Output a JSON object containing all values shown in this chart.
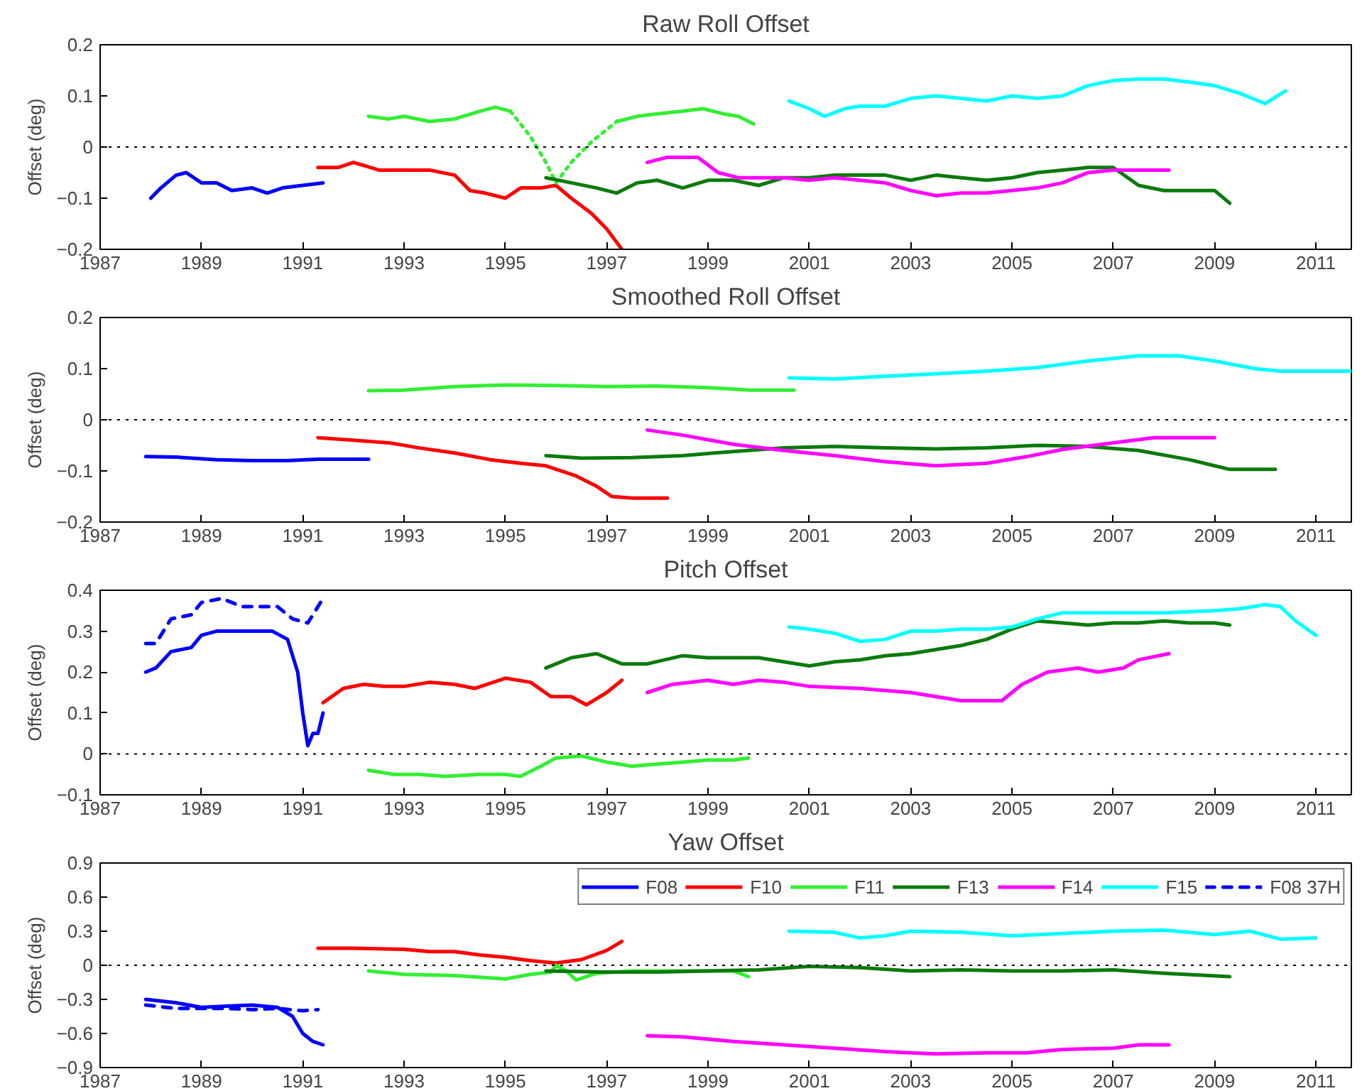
{
  "chart_data": [
    {
      "type": "line",
      "title": "Raw Roll Offset",
      "ylabel": "Offset (deg)",
      "xlim": [
        1987,
        2011.7
      ],
      "xticks": [
        1987,
        1989,
        1991,
        1993,
        1995,
        1997,
        1999,
        2001,
        2003,
        2005,
        2007,
        2009,
        2011
      ],
      "ylim": [
        -0.2,
        0.2
      ],
      "yticks": [
        -0.2,
        -0.1,
        0,
        0.1,
        0.2
      ],
      "grid": false,
      "legend": false,
      "line_style": "solid",
      "ref_lines": [
        {
          "axis": "y",
          "value": 0,
          "color": "#000000",
          "line_style": "dotted"
        }
      ],
      "series": [
        {
          "color": "#0000ff",
          "x": [
            1988.0,
            1988.2,
            1988.5,
            1988.7,
            1989.0,
            1989.3,
            1989.6,
            1990.0,
            1990.3,
            1990.6,
            1991.0,
            1991.4
          ],
          "values": [
            -0.1,
            -0.08,
            -0.055,
            -0.05,
            -0.07,
            -0.07,
            -0.085,
            -0.08,
            -0.09,
            -0.08,
            -0.075,
            -0.07
          ]
        },
        {
          "color": "#ff0000",
          "x": [
            1991.3,
            1991.7,
            1992.0,
            1992.5,
            1993.0,
            1993.5,
            1994.0,
            1994.3,
            1994.6,
            1995.0,
            1995.3,
            1995.7,
            1996.0,
            1996.3,
            1996.7,
            1997.0,
            1997.3
          ],
          "values": [
            -0.04,
            -0.04,
            -0.03,
            -0.045,
            -0.045,
            -0.045,
            -0.055,
            -0.085,
            -0.09,
            -0.1,
            -0.08,
            -0.08,
            -0.075,
            -0.1,
            -0.13,
            -0.16,
            -0.2
          ]
        },
        {
          "color": "#33ee33",
          "x": [
            1992.3,
            1992.7,
            1993.0,
            1993.5,
            1994.0,
            1994.5,
            1994.8,
            1995.1,
            1996.0,
            1997.2,
            1997.6,
            1998.0,
            1998.5,
            1998.9,
            1999.3,
            1999.6,
            1999.9
          ],
          "values": [
            0.06,
            0.055,
            0.06,
            0.05,
            0.055,
            0.07,
            0.078,
            0.07,
            null,
            0.05,
            0.06,
            0.065,
            0.07,
            0.075,
            0.065,
            0.06,
            0.045
          ]
        },
        {
          "color": "#33ee33",
          "line_style": "dotted",
          "x": [
            1995.1,
            1995.5,
            1995.8,
            1996.0,
            1996.3,
            1996.7,
            1997.2
          ],
          "values": [
            0.07,
            0.02,
            -0.03,
            -0.07,
            -0.03,
            0.01,
            0.05
          ]
        },
        {
          "color": "#0a7a0a",
          "x": [
            1995.8,
            1996.3,
            1996.8,
            1997.2,
            1997.6,
            1998.0,
            1998.5,
            1999.0,
            1999.5,
            2000.0,
            2000.5,
            2001.0,
            2001.5,
            2002.0,
            2002.5,
            2003.0,
            2003.5,
            2004.0,
            2004.5,
            2005.0,
            2005.5,
            2006.0,
            2006.5,
            2007.0,
            2007.5,
            2008.0,
            2008.5,
            2009.0,
            2009.3
          ],
          "values": [
            -0.06,
            -0.07,
            -0.08,
            -0.09,
            -0.07,
            -0.065,
            -0.08,
            -0.065,
            -0.065,
            -0.075,
            -0.06,
            -0.06,
            -0.055,
            -0.055,
            -0.055,
            -0.065,
            -0.055,
            -0.06,
            -0.065,
            -0.06,
            -0.05,
            -0.045,
            -0.04,
            -0.04,
            -0.075,
            -0.085,
            -0.085,
            -0.085,
            -0.11
          ]
        },
        {
          "color": "#ff00ff",
          "x": [
            1997.8,
            1998.2,
            1998.8,
            1999.2,
            1999.6,
            2000.0,
            2000.5,
            2001.0,
            2001.5,
            2002.0,
            2002.5,
            2003.0,
            2003.5,
            2004.0,
            2004.5,
            2005.0,
            2005.5,
            2006.0,
            2006.5,
            2007.0,
            2007.5,
            2008.1
          ],
          "values": [
            -0.03,
            -0.02,
            -0.02,
            -0.05,
            -0.06,
            -0.06,
            -0.06,
            -0.065,
            -0.06,
            -0.065,
            -0.07,
            -0.085,
            -0.095,
            -0.09,
            -0.09,
            -0.085,
            -0.08,
            -0.07,
            -0.05,
            -0.045,
            -0.045,
            -0.045
          ]
        },
        {
          "color": "#00ffff",
          "x": [
            2000.6,
            2001.0,
            2001.3,
            2001.7,
            2002.0,
            2002.5,
            2003.0,
            2003.5,
            2004.0,
            2004.5,
            2005.0,
            2005.5,
            2006.0,
            2006.5,
            2007.0,
            2007.5,
            2008.0,
            2008.5,
            2009.0,
            2009.5,
            2010.0,
            2010.4
          ],
          "values": [
            0.09,
            0.075,
            0.06,
            0.075,
            0.08,
            0.08,
            0.095,
            0.1,
            0.095,
            0.09,
            0.1,
            0.095,
            0.1,
            0.12,
            0.13,
            0.133,
            0.133,
            0.127,
            0.12,
            0.105,
            0.085,
            0.11
          ]
        }
      ]
    },
    {
      "type": "line",
      "title": "Smoothed Roll Offset",
      "ylabel": "Offset (deg)",
      "xlim": [
        1987,
        2011.7
      ],
      "xticks": [
        1987,
        1989,
        1991,
        1993,
        1995,
        1997,
        1999,
        2001,
        2003,
        2005,
        2007,
        2009,
        2011
      ],
      "ylim": [
        -0.2,
        0.2
      ],
      "yticks": [
        -0.2,
        -0.1,
        0,
        0.1,
        0.2
      ],
      "grid": false,
      "legend": false,
      "line_style": "solid",
      "ref_lines": [
        {
          "axis": "y",
          "value": 0,
          "color": "#000000",
          "line_style": "dotted"
        }
      ],
      "series": [
        {
          "color": "#0000ff",
          "x": [
            1987.9,
            1988.5,
            1989.3,
            1990.0,
            1990.7,
            1991.3,
            1992.3
          ],
          "values": [
            -0.072,
            -0.073,
            -0.078,
            -0.08,
            -0.08,
            -0.077,
            -0.077
          ]
        },
        {
          "color": "#ff0000",
          "x": [
            1991.3,
            1992.0,
            1992.7,
            1993.3,
            1994.0,
            1994.7,
            1995.3,
            1995.8,
            1996.4,
            1996.8,
            1997.1,
            1997.5,
            1998.2
          ],
          "values": [
            -0.035,
            -0.04,
            -0.045,
            -0.055,
            -0.065,
            -0.078,
            -0.085,
            -0.09,
            -0.11,
            -0.13,
            -0.15,
            -0.153,
            -0.153
          ]
        },
        {
          "color": "#33ee33",
          "x": [
            1992.3,
            1993.0,
            1994.0,
            1995.0,
            1996.0,
            1997.0,
            1998.0,
            1999.0,
            1999.8,
            2000.7
          ],
          "values": [
            0.057,
            0.058,
            0.065,
            0.068,
            0.067,
            0.065,
            0.066,
            0.063,
            0.058,
            0.058
          ]
        },
        {
          "color": "#0a7a0a",
          "x": [
            1995.8,
            1996.5,
            1997.5,
            1998.5,
            1999.5,
            2000.5,
            2001.5,
            2002.5,
            2003.5,
            2004.5,
            2005.5,
            2006.5,
            2007.5,
            2008.5,
            2009.0,
            2009.3,
            2010.2
          ],
          "values": [
            -0.07,
            -0.075,
            -0.074,
            -0.07,
            -0.062,
            -0.055,
            -0.052,
            -0.055,
            -0.057,
            -0.055,
            -0.05,
            -0.052,
            -0.06,
            -0.078,
            -0.09,
            -0.097,
            -0.097
          ]
        },
        {
          "color": "#ff00ff",
          "x": [
            1997.8,
            1998.5,
            1999.5,
            2000.5,
            2001.5,
            2002.5,
            2003.5,
            2004.5,
            2005.3,
            2006.0,
            2007.0,
            2007.8,
            2009.0
          ],
          "values": [
            -0.02,
            -0.03,
            -0.048,
            -0.06,
            -0.07,
            -0.082,
            -0.09,
            -0.085,
            -0.072,
            -0.058,
            -0.045,
            -0.035,
            -0.035
          ]
        },
        {
          "color": "#00ffff",
          "x": [
            2000.6,
            2001.5,
            2002.5,
            2003.5,
            2004.5,
            2005.5,
            2006.5,
            2007.5,
            2008.3,
            2009.0,
            2009.8,
            2010.3,
            2011.7
          ],
          "values": [
            0.082,
            0.08,
            0.085,
            0.09,
            0.095,
            0.102,
            0.115,
            0.125,
            0.125,
            0.115,
            0.1,
            0.095,
            0.095
          ]
        }
      ]
    },
    {
      "type": "line",
      "title": "Pitch Offset",
      "ylabel": "Offset (deg)",
      "xlim": [
        1987,
        2011.7
      ],
      "xticks": [
        1987,
        1989,
        1991,
        1993,
        1995,
        1997,
        1999,
        2001,
        2003,
        2005,
        2007,
        2009,
        2011
      ],
      "ylim": [
        -0.1,
        0.4
      ],
      "yticks": [
        -0.1,
        0,
        0.1,
        0.2,
        0.3,
        0.4
      ],
      "grid": false,
      "legend": false,
      "line_style": "solid",
      "ref_lines": [
        {
          "axis": "y",
          "value": 0,
          "color": "#000000",
          "line_style": "dotted"
        }
      ],
      "series": [
        {
          "color": "#0000ff",
          "x": [
            1987.9,
            1988.1,
            1988.4,
            1988.8,
            1989.0,
            1989.3,
            1989.6,
            1990.0,
            1990.4,
            1990.7,
            1990.9,
            1991.0,
            1991.1,
            1991.2,
            1991.3,
            1991.4
          ],
          "values": [
            0.2,
            0.21,
            0.25,
            0.26,
            0.29,
            0.3,
            0.3,
            0.3,
            0.3,
            0.28,
            0.2,
            0.1,
            0.02,
            0.05,
            0.05,
            0.1
          ]
        },
        {
          "color": "#0000ff",
          "line_style": "dashed",
          "x": [
            1987.9,
            1988.1,
            1988.4,
            1988.8,
            1989.0,
            1989.4,
            1989.8,
            1990.2,
            1990.5,
            1990.8,
            1991.1,
            1991.4
          ],
          "values": [
            0.27,
            0.27,
            0.33,
            0.34,
            0.37,
            0.38,
            0.36,
            0.36,
            0.36,
            0.33,
            0.32,
            0.38
          ]
        },
        {
          "color": "#ff0000",
          "x": [
            1991.4,
            1991.8,
            1992.2,
            1992.6,
            1993.0,
            1993.5,
            1994.0,
            1994.4,
            1995.0,
            1995.5,
            1995.9,
            1996.3,
            1996.6,
            1997.0,
            1997.3
          ],
          "values": [
            0.125,
            0.16,
            0.17,
            0.165,
            0.165,
            0.175,
            0.17,
            0.16,
            0.185,
            0.175,
            0.14,
            0.14,
            0.12,
            0.15,
            0.18
          ]
        },
        {
          "color": "#33ee33",
          "x": [
            1992.3,
            1992.8,
            1993.3,
            1993.8,
            1994.5,
            1995.0,
            1995.3,
            1995.7,
            1996.0,
            1996.5,
            1997.0,
            1997.5,
            1998.0,
            1998.5,
            1999.0,
            1999.5,
            1999.8
          ],
          "values": [
            -0.04,
            -0.05,
            -0.05,
            -0.055,
            -0.05,
            -0.05,
            -0.055,
            -0.03,
            -0.01,
            -0.005,
            -0.02,
            -0.03,
            -0.025,
            -0.02,
            -0.015,
            -0.015,
            -0.01
          ]
        },
        {
          "color": "#0a7a0a",
          "x": [
            1995.8,
            1996.3,
            1996.8,
            1997.3,
            1997.8,
            1998.5,
            1999.0,
            1999.5,
            2000.0,
            2000.5,
            2001.0,
            2001.5,
            2002.0,
            2002.5,
            2003.0,
            2003.5,
            2004.0,
            2004.5,
            2005.0,
            2005.5,
            2006.0,
            2006.5,
            2007.0,
            2007.5,
            2008.0,
            2008.5,
            2009.0,
            2009.3
          ],
          "values": [
            0.21,
            0.235,
            0.245,
            0.22,
            0.22,
            0.24,
            0.235,
            0.235,
            0.235,
            0.225,
            0.215,
            0.225,
            0.23,
            0.24,
            0.245,
            0.255,
            0.265,
            0.28,
            0.305,
            0.325,
            0.32,
            0.315,
            0.32,
            0.32,
            0.325,
            0.32,
            0.32,
            0.315
          ]
        },
        {
          "color": "#ff00ff",
          "x": [
            1997.8,
            1998.3,
            1999.0,
            1999.5,
            2000.0,
            2000.5,
            2001.0,
            2002.0,
            2003.0,
            2003.5,
            2004.0,
            2004.8,
            2005.2,
            2005.7,
            2006.3,
            2006.7,
            2007.2,
            2007.5,
            2008.1
          ],
          "values": [
            0.15,
            0.17,
            0.18,
            0.17,
            0.18,
            0.175,
            0.165,
            0.16,
            0.15,
            0.14,
            0.13,
            0.13,
            0.17,
            0.2,
            0.21,
            0.2,
            0.21,
            0.23,
            0.245
          ]
        },
        {
          "color": "#00ffff",
          "x": [
            2000.6,
            2001.0,
            2001.5,
            2002.0,
            2002.5,
            2003.0,
            2003.5,
            2004.0,
            2004.5,
            2005.0,
            2005.5,
            2006.0,
            2007.0,
            2008.0,
            2009.0,
            2009.5,
            2010.0,
            2010.3,
            2010.6,
            2011.0
          ],
          "values": [
            0.31,
            0.305,
            0.295,
            0.275,
            0.28,
            0.3,
            0.3,
            0.305,
            0.305,
            0.31,
            0.33,
            0.345,
            0.345,
            0.345,
            0.35,
            0.355,
            0.365,
            0.36,
            0.325,
            0.29
          ]
        }
      ]
    },
    {
      "type": "line",
      "title": "Yaw Offset",
      "ylabel": "Offset (deg)",
      "xlim": [
        1987,
        2011.7
      ],
      "xticks": [
        1987,
        1989,
        1991,
        1993,
        1995,
        1997,
        1999,
        2001,
        2003,
        2005,
        2007,
        2009,
        2011
      ],
      "ylim": [
        -0.9,
        0.9
      ],
      "yticks": [
        -0.9,
        -0.6,
        -0.3,
        0,
        0.3,
        0.6,
        0.9
      ],
      "grid": false,
      "legend": "top right",
      "line_style": "solid",
      "ref_lines": [
        {
          "axis": "y",
          "value": 0,
          "color": "#000000",
          "line_style": "dotted"
        }
      ],
      "series": [
        {
          "name": "F08",
          "color": "#0000ff",
          "x": [
            1987.9,
            1988.5,
            1989.0,
            1989.5,
            1990.0,
            1990.5,
            1990.8,
            1991.0,
            1991.2,
            1991.4
          ],
          "values": [
            -0.3,
            -0.33,
            -0.37,
            -0.36,
            -0.35,
            -0.37,
            -0.45,
            -0.6,
            -0.67,
            -0.7
          ]
        },
        {
          "name": "F10",
          "color": "#ff0000",
          "x": [
            1991.3,
            1992.0,
            1993.0,
            1993.5,
            1994.0,
            1994.5,
            1995.0,
            1995.5,
            1996.0,
            1996.5,
            1997.0,
            1997.3
          ],
          "values": [
            0.15,
            0.15,
            0.14,
            0.12,
            0.12,
            0.09,
            0.07,
            0.04,
            0.02,
            0.05,
            0.13,
            0.21
          ]
        },
        {
          "name": "F11",
          "color": "#33ee33",
          "x": [
            1992.3,
            1993.0,
            1994.0,
            1995.0,
            1995.5,
            1995.9,
            1996.0,
            1996.2,
            1996.4,
            1996.8,
            1997.5,
            1998.5,
            1999.5,
            1999.8
          ],
          "values": [
            -0.05,
            -0.08,
            -0.09,
            -0.12,
            -0.08,
            -0.06,
            0.0,
            -0.05,
            -0.13,
            -0.07,
            -0.05,
            -0.05,
            -0.05,
            -0.1
          ]
        },
        {
          "name": "F13",
          "color": "#0a7a0a",
          "x": [
            1995.8,
            1997.0,
            1998.0,
            1999.0,
            2000.0,
            2001.0,
            2002.0,
            2003.0,
            2004.0,
            2005.0,
            2006.0,
            2007.0,
            2008.0,
            2009.3
          ],
          "values": [
            -0.05,
            -0.06,
            -0.06,
            -0.05,
            -0.04,
            -0.01,
            -0.02,
            -0.05,
            -0.04,
            -0.05,
            -0.05,
            -0.04,
            -0.07,
            -0.1
          ]
        },
        {
          "name": "F14",
          "color": "#ff00ff",
          "x": [
            1997.8,
            1998.5,
            1999.5,
            2000.5,
            2001.5,
            2002.5,
            2003.5,
            2004.5,
            2005.3,
            2006.0,
            2007.0,
            2007.5,
            2008.1
          ],
          "values": [
            -0.62,
            -0.63,
            -0.67,
            -0.7,
            -0.73,
            -0.76,
            -0.78,
            -0.77,
            -0.77,
            -0.74,
            -0.73,
            -0.7,
            -0.7
          ]
        },
        {
          "name": "F15",
          "color": "#00ffff",
          "x": [
            2000.6,
            2001.5,
            2002.0,
            2002.5,
            2003.0,
            2004.0,
            2005.0,
            2006.0,
            2007.0,
            2008.0,
            2009.0,
            2009.7,
            2010.3,
            2011.0
          ],
          "values": [
            0.3,
            0.29,
            0.24,
            0.26,
            0.3,
            0.29,
            0.26,
            0.28,
            0.3,
            0.31,
            0.27,
            0.3,
            0.23,
            0.24
          ]
        },
        {
          "name": "F08 37H",
          "color": "#0000ff",
          "line_style": "dashed",
          "x": [
            1987.9,
            1988.5,
            1989.0,
            1989.5,
            1990.0,
            1990.5,
            1991.0,
            1991.3
          ],
          "values": [
            -0.35,
            -0.38,
            -0.38,
            -0.38,
            -0.39,
            -0.38,
            -0.4,
            -0.39
          ]
        }
      ]
    }
  ]
}
